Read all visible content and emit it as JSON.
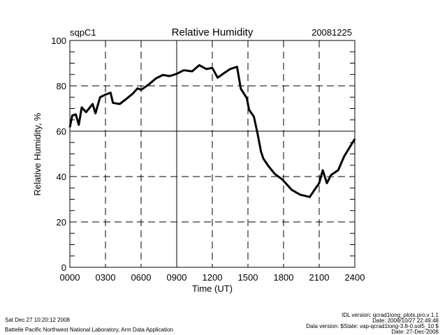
{
  "chart_data": {
    "type": "line",
    "site": "sqpC1",
    "title": "Relative Humidity",
    "date": "20081225",
    "xlabel": "Time (UT)",
    "ylabel": "Relative Humidity, %",
    "xlim": [
      0,
      24
    ],
    "ylim": [
      0,
      100
    ],
    "xticks": [
      0,
      3,
      6,
      9,
      12,
      15,
      18,
      21,
      24
    ],
    "xtick_labels": [
      "0000",
      "0300",
      "0600",
      "0900",
      "1200",
      "1500",
      "1800",
      "2100",
      "2400"
    ],
    "yticks": [
      0,
      20,
      40,
      60,
      80,
      100
    ],
    "ytick_labels": [
      "0",
      "20",
      "40",
      "60",
      "80",
      "100"
    ],
    "grid": true,
    "series": [
      {
        "name": "Relative Humidity",
        "color": "#000000",
        "x": [
          0,
          0.2,
          0.5,
          0.75,
          1.0,
          1.37,
          1.92,
          2.16,
          2.55,
          2.94,
          3.43,
          3.63,
          4.2,
          4.7,
          5.3,
          5.7,
          6.0,
          6.67,
          7.25,
          7.84,
          8.4,
          9.0,
          9.6,
          10.3,
          10.9,
          11.5,
          12.0,
          12.45,
          12.9,
          13.5,
          14.08,
          14.4,
          14.9,
          15.1,
          15.5,
          15.8,
          16.1,
          16.3,
          16.7,
          17.25,
          17.9,
          18.7,
          19.4,
          19.8,
          20.2,
          20.6,
          21.0,
          21.3,
          21.65,
          22.0,
          22.6,
          23.1,
          24.0
        ],
        "y": [
          61.7,
          66.9,
          67.4,
          62.8,
          70.5,
          68.4,
          72,
          67.9,
          75,
          76,
          77,
          72.5,
          72,
          74,
          76.6,
          78.9,
          78.2,
          80.7,
          83.3,
          84.8,
          84.3,
          85.3,
          86.9,
          86.4,
          89.1,
          87.4,
          87.9,
          83.6,
          85.3,
          87.4,
          88.4,
          78.7,
          74.6,
          69.4,
          66.4,
          59.2,
          51,
          47.9,
          44.8,
          41.2,
          38.7,
          34.1,
          32,
          31.5,
          31,
          34.1,
          37.1,
          42.8,
          37.1,
          40.7,
          42.8,
          48.9,
          56.6
        ]
      }
    ]
  },
  "footer": {
    "timestamp": "Sat Dec 27 10:20:12 2008",
    "organization": "Battelle Pacific Northwest National Laboratory, Arm Data Application",
    "idl_version": "IDL version: qcrad1long_plots.pro,v 1.1",
    "idl_date": "Date: 2008/10/27 22:49:48",
    "data_version": "Data version: $State: vap-qcrad1long-3.8-0.sol5_10 $",
    "data_date": "Date: 27-Dec-2008"
  }
}
